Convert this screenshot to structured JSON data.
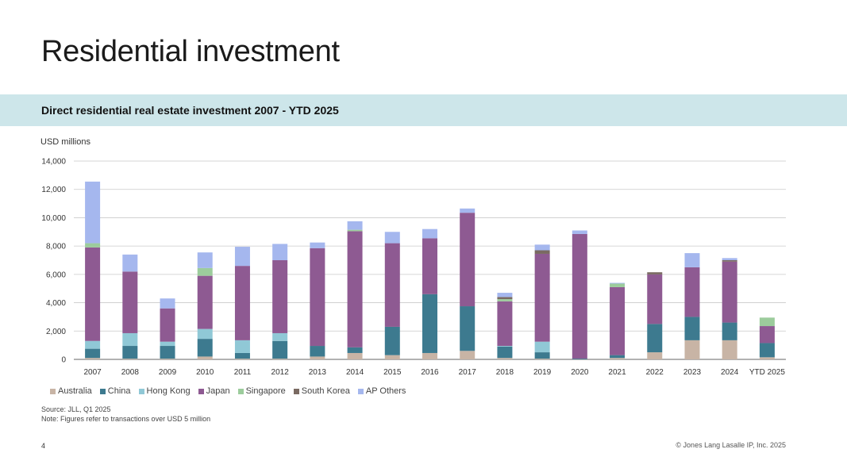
{
  "page": {
    "title": "Residential investment",
    "banner": "Direct residential real estate investment 2007 -  YTD 2025",
    "unit_label": "USD millions",
    "source": "Source: JLL, Q1 2025",
    "note": "Note: Figures refer to transactions over USD 5 million",
    "page_number": "4",
    "copyright": "© Jones Lang Lasalle IP, Inc. 2025"
  },
  "chart_data": {
    "type": "bar",
    "stacked": true,
    "title": "Direct residential real estate investment 2007 -  YTD 2025",
    "ylabel": "USD millions",
    "xlabel": "",
    "ylim": [
      0,
      14000
    ],
    "yticks": [
      0,
      2000,
      4000,
      6000,
      8000,
      10000,
      12000,
      14000
    ],
    "ytick_labels": [
      "0",
      "2,000",
      "4,000",
      "6,000",
      "8,000",
      "10,000",
      "12,000",
      "14,000"
    ],
    "grid": true,
    "legend_position": "bottom-left",
    "categories": [
      "2007",
      "2008",
      "2009",
      "2010",
      "2011",
      "2012",
      "2013",
      "2014",
      "2015",
      "2016",
      "2017",
      "2018",
      "2019",
      "2020",
      "2021",
      "2022",
      "2023",
      "2024",
      "YTD 2025"
    ],
    "series": [
      {
        "name": "Australia",
        "color": "#c8b4a5",
        "values": [
          100,
          50,
          50,
          200,
          50,
          50,
          200,
          450,
          300,
          450,
          600,
          100,
          50,
          0,
          100,
          500,
          1350,
          1350,
          150
        ]
      },
      {
        "name": "China",
        "color": "#3d7a8f",
        "values": [
          650,
          900,
          900,
          1250,
          400,
          1250,
          750,
          400,
          2000,
          4150,
          3150,
          800,
          450,
          50,
          200,
          2000,
          1650,
          1250,
          1000
        ]
      },
      {
        "name": "Hong Kong",
        "color": "#90c8d6",
        "values": [
          550,
          900,
          300,
          700,
          900,
          550,
          0,
          0,
          0,
          0,
          0,
          50,
          750,
          0,
          0,
          0,
          0,
          0,
          0
        ]
      },
      {
        "name": "Japan",
        "color": "#8e5a92",
        "values": [
          6600,
          4350,
          2350,
          3750,
          5250,
          5150,
          6900,
          8200,
          5900,
          3950,
          6600,
          3150,
          6200,
          8800,
          4800,
          3500,
          3500,
          4300,
          1200
        ]
      },
      {
        "name": "Singapore",
        "color": "#9ccc9c",
        "values": [
          300,
          0,
          0,
          550,
          0,
          0,
          0,
          100,
          0,
          0,
          0,
          150,
          0,
          0,
          250,
          0,
          0,
          0,
          600
        ]
      },
      {
        "name": "South Korea",
        "color": "#7a6a62",
        "values": [
          0,
          0,
          0,
          0,
          0,
          0,
          0,
          0,
          0,
          0,
          0,
          150,
          250,
          0,
          0,
          150,
          0,
          100,
          0
        ]
      },
      {
        "name": "AP Others",
        "color": "#a5b7ee",
        "values": [
          4350,
          1200,
          700,
          1100,
          1350,
          1150,
          400,
          600,
          800,
          650,
          300,
          300,
          400,
          250,
          50,
          0,
          1000,
          150,
          0
        ]
      }
    ]
  }
}
